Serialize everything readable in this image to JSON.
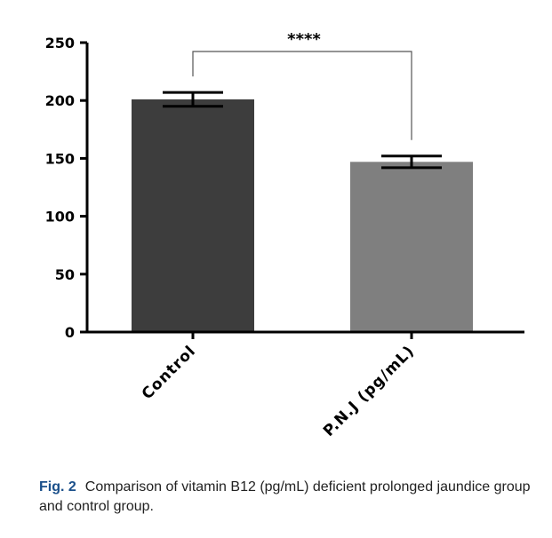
{
  "chart_data": {
    "type": "bar",
    "categories": [
      "Control",
      "P.N.J (pg/mL)"
    ],
    "values": [
      201,
      147
    ],
    "error": [
      6,
      5
    ],
    "ylim": [
      0,
      250
    ],
    "yticks": [
      0,
      50,
      100,
      150,
      200,
      250
    ],
    "significance": "****",
    "colors": [
      "#3d3d3d",
      "#7f7f7f"
    ]
  },
  "caption": {
    "label": "Fig. 2",
    "text": "Comparison of vitamin B12 (pg/mL) deficient prolonged jaundice group and control group."
  }
}
